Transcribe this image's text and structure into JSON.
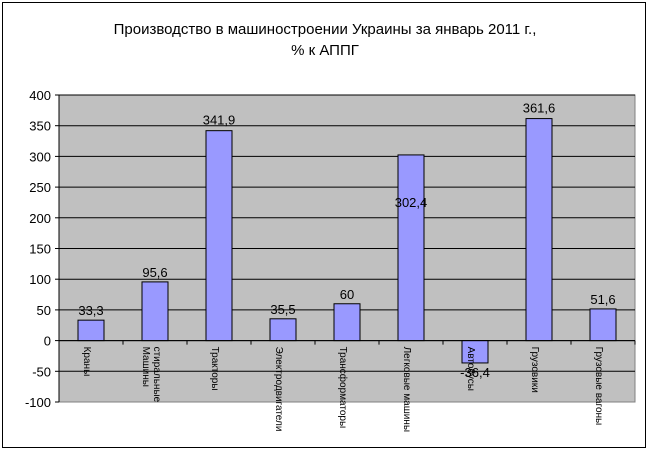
{
  "chart_data": {
    "type": "bar",
    "title_lines": [
      "Производство в машиностроении Украины за январь 2011 г.,",
      "% к АППГ"
    ],
    "categories": [
      "Краны",
      "Машины стиральные",
      "Тракторы",
      "Электродвигатели",
      "Трансформаторы",
      "Легковые машины",
      "Автобусы",
      "Грузовики",
      "Грузовые вагоны"
    ],
    "category_label_lines": [
      [
        "Краны"
      ],
      [
        "Машины",
        "стиральные"
      ],
      [
        "Тракторы"
      ],
      [
        "Электродвигатели"
      ],
      [
        "Трансформаторы"
      ],
      [
        "Легковые машины"
      ],
      [
        "Автобусы"
      ],
      [
        "Грузовики"
      ],
      [
        "Грузовые вагоны"
      ]
    ],
    "values": [
      33.3,
      95.6,
      341.9,
      35.5,
      60,
      302.4,
      -36.4,
      361.6,
      51.6
    ],
    "data_labels": [
      "33,3",
      "95,6",
      "341,9",
      "35,5",
      "60",
      "302,4",
      "-36,4",
      "361,6",
      "51,6"
    ],
    "ylim": [
      -100,
      400
    ],
    "yticks": [
      "-100",
      "-50",
      "0",
      "50",
      "100",
      "150",
      "200",
      "250",
      "300",
      "350",
      "400"
    ],
    "xlabel": "",
    "ylabel": "",
    "grid": true,
    "legend": "none",
    "colors": {
      "bar_fill": "#9999ff",
      "bar_stroke": "#000000",
      "plot_background": "#c0c0c0",
      "grid": "#000000"
    }
  }
}
